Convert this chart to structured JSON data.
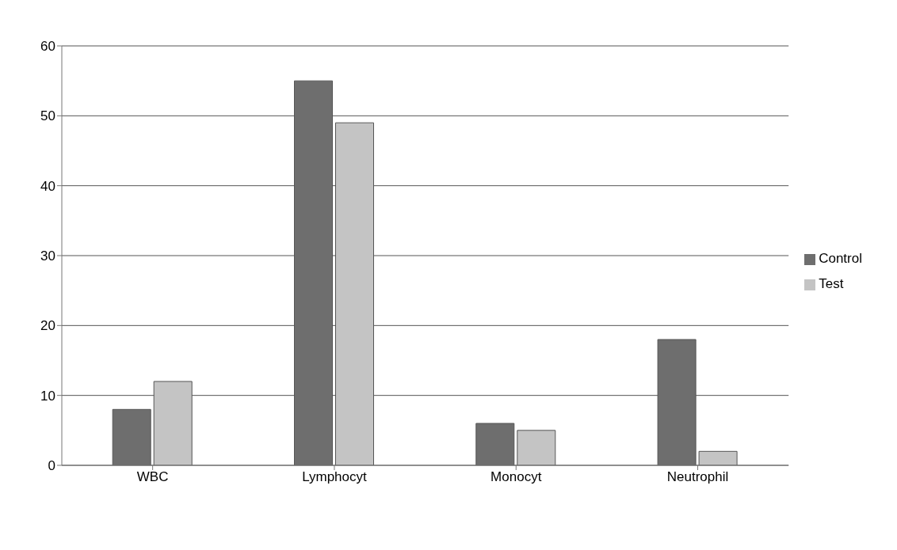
{
  "chart_data": {
    "type": "bar",
    "categories": [
      "WBC",
      "Lymphocyt",
      "Monocyt",
      "Neutrophil"
    ],
    "series": [
      {
        "name": "Control",
        "color": "#6e6e6e",
        "values": [
          8,
          55,
          6,
          18
        ]
      },
      {
        "name": "Test",
        "color": "#c4c4c4",
        "values": [
          12,
          49,
          5,
          2
        ]
      }
    ],
    "ylim": [
      0,
      60
    ],
    "yticks": [
      0,
      10,
      20,
      30,
      40,
      50,
      60
    ],
    "grid": "y",
    "legend": "right"
  }
}
